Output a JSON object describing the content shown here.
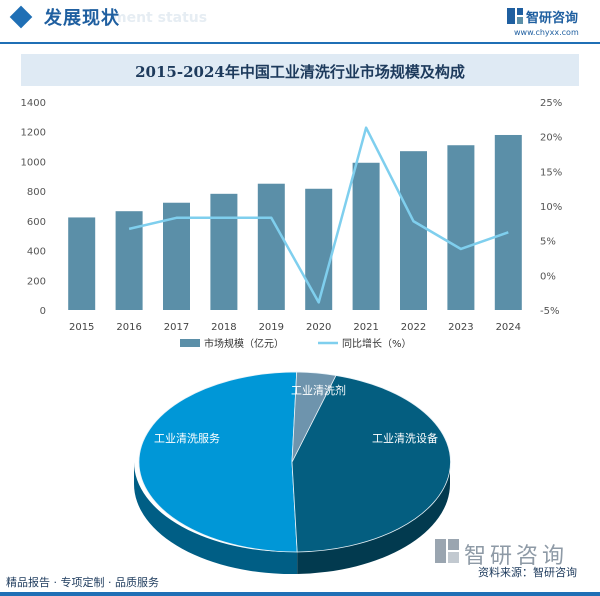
{
  "header": {
    "section_title": "发展现状",
    "section_subtitle": "ment status"
  },
  "brand": {
    "name": "智研咨询",
    "url": "www.chyxx.com"
  },
  "footer": {
    "left_text": "精品报告 · 专项定制 · 品质服务",
    "source_text": "资料来源：智研咨询"
  },
  "colors": {
    "bar": "#5b8fa8",
    "line": "#7fcfee",
    "accent": "#1f6fb5",
    "pie_services": "#0097d7",
    "pie_equipment": "#045e80",
    "pie_agent": "#6e94ad"
  },
  "chart_data": [
    {
      "type": "bar",
      "title": "2015-2024年中国工业清洗行业市场规模及构成",
      "categories": [
        "2015",
        "2016",
        "2017",
        "2018",
        "2019",
        "2020",
        "2021",
        "2022",
        "2023",
        "2024"
      ],
      "series": [
        {
          "name": "市场规模（亿元）",
          "type": "bar",
          "axis": "left",
          "values": [
            623,
            665,
            722,
            782,
            850,
            816,
            991,
            1069,
            1109,
            1178
          ]
        },
        {
          "name": "同比增长（%）",
          "type": "line",
          "axis": "right",
          "values": [
            null,
            6.7,
            8.3,
            8.3,
            8.3,
            -3.9,
            21.3,
            7.8,
            3.8,
            6.2
          ]
        }
      ],
      "y_left": {
        "ticks": [
          "0",
          "200",
          "400",
          "600",
          "800",
          "1000",
          "1200",
          "1400"
        ],
        "ylim": [
          0,
          1400
        ]
      },
      "y_right": {
        "ticks": [
          "-5%",
          "0%",
          "5%",
          "10%",
          "15%",
          "20%",
          "25%"
        ],
        "ylim": [
          -5,
          25
        ]
      },
      "legend_position": "bottom",
      "grid": false
    },
    {
      "type": "pie",
      "labels": [
        "工业清洗服务",
        "工业清洗设备",
        "工业清洗剂"
      ],
      "values": [
        51,
        45,
        4
      ]
    }
  ]
}
